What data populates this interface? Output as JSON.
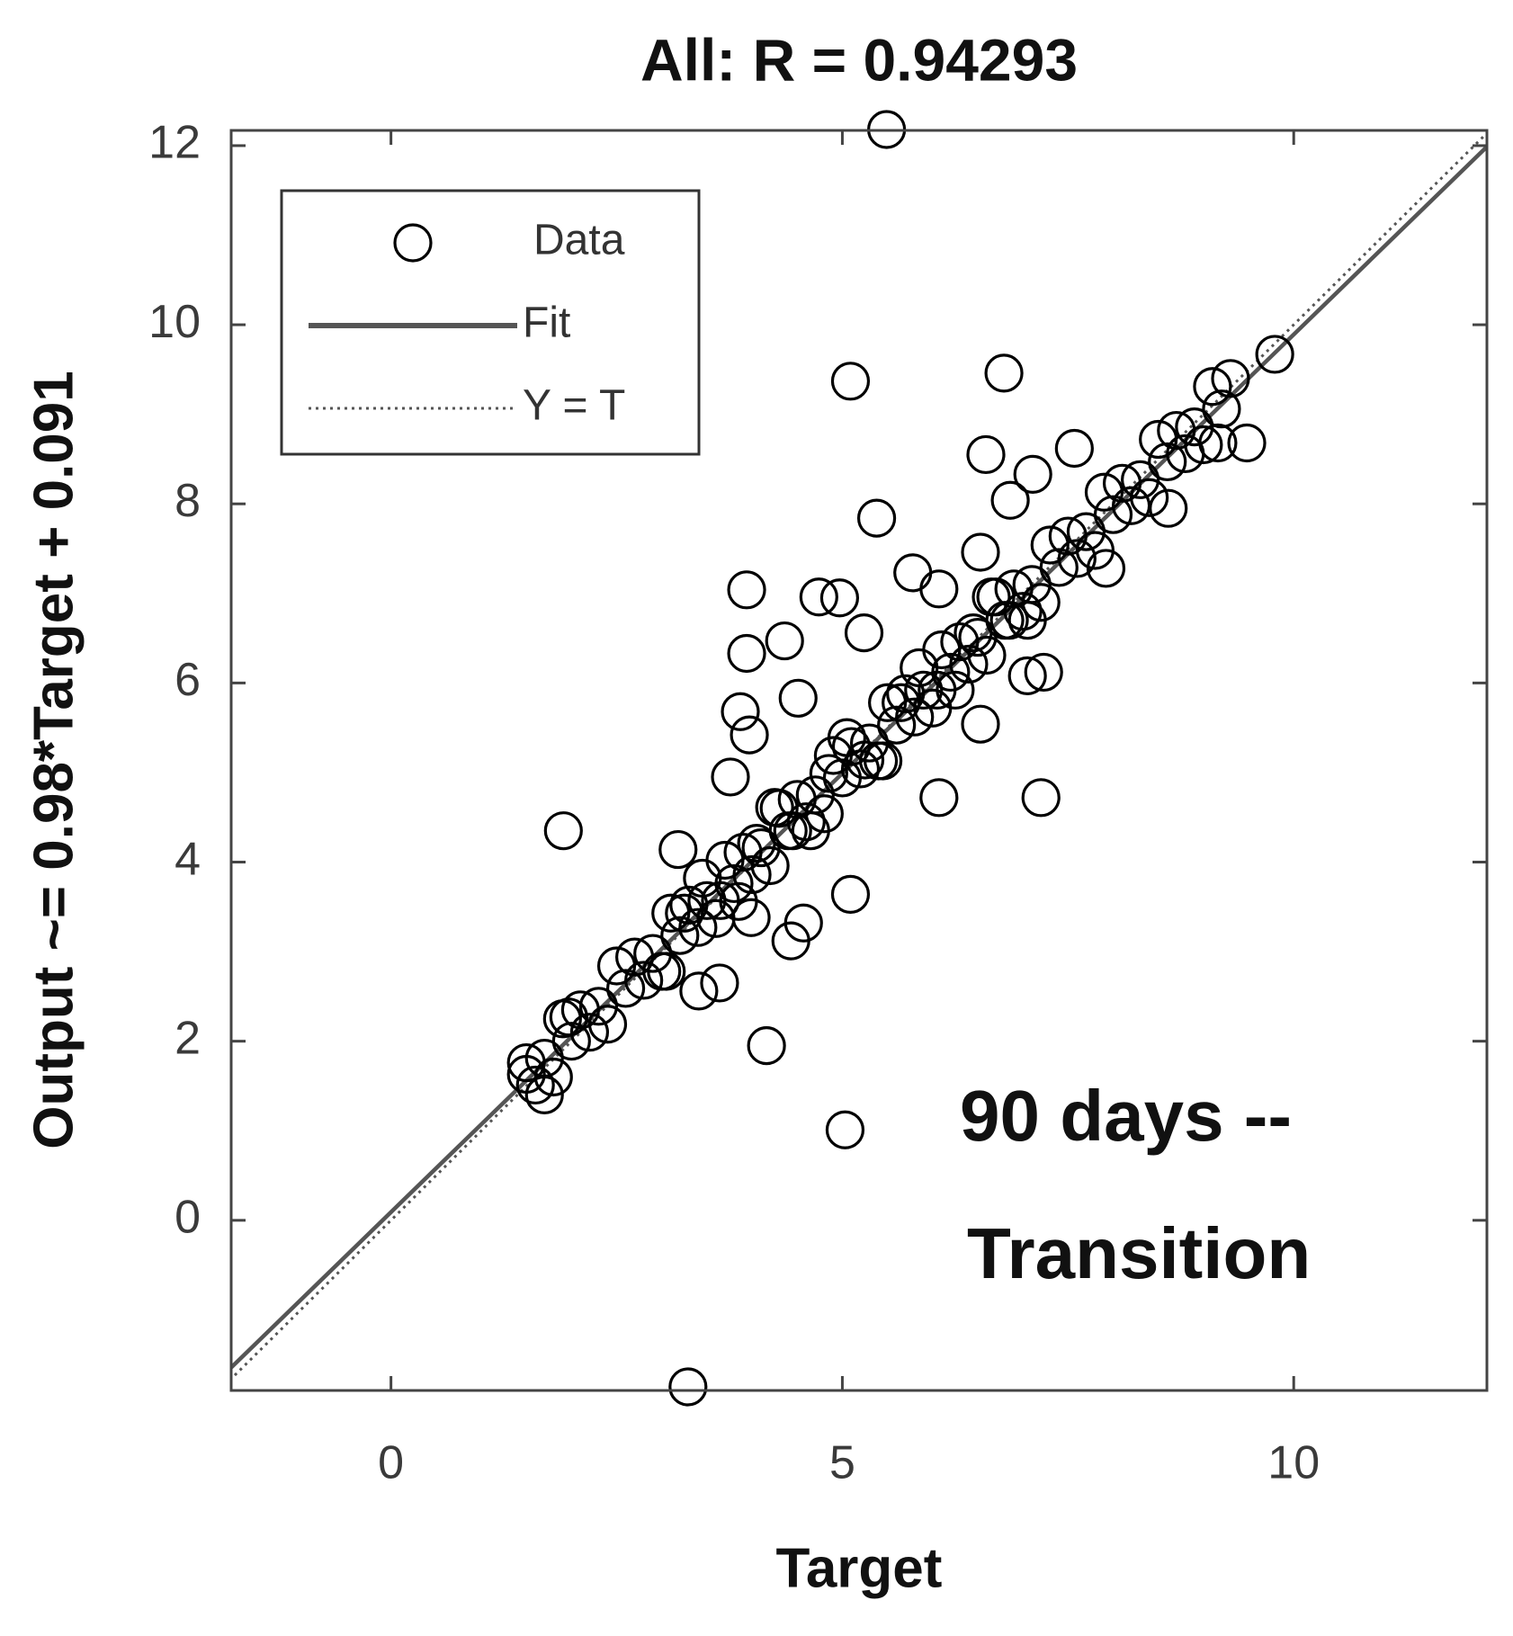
{
  "chart_data": {
    "type": "scatter",
    "title": "All: R = 0.94293",
    "x_label": "Target",
    "y_label": "Output ~= 0.98*Target + 0.091",
    "annotation": [
      "90 days --",
      "Transition"
    ],
    "xlim": [
      -1.77,
      12.14
    ],
    "ylim": [
      -1.9,
      12.17
    ],
    "xticks": [
      0,
      5,
      10
    ],
    "yticks": [
      0,
      2,
      4,
      6,
      8,
      10,
      12
    ],
    "grid": false,
    "legend": "upper left",
    "fit": {
      "name": "Fit",
      "slope": 0.98,
      "intercept": 0.091,
      "color": "#555555"
    },
    "reference": {
      "name": "Y = T",
      "color": "#555555"
    },
    "series": [
      {
        "name": "Data",
        "color": "#000000",
        "x": [
          5.49,
          3.29,
          1.91,
          5.03,
          4.16,
          7.2,
          5.09,
          6.79,
          5.38,
          3.94,
          3.94,
          4.36,
          3.87,
          6.59,
          7.11,
          7.57,
          6.86,
          5.78,
          4.74,
          4.97,
          5.24,
          6.07,
          6.53,
          4.51,
          3.97,
          3.18,
          5.09,
          4.57,
          4.43,
          3.64,
          3.41,
          9.79,
          9.48,
          9.16,
          8.61,
          7.92,
          7.05,
          7.23,
          6.53,
          6.07,
          1.7,
          1.5,
          1.97,
          3.76,
          3.99,
          1.5,
          1.6,
          1.7,
          1.8,
          1.9,
          2.0,
          2.1,
          2.2,
          2.3,
          2.4,
          2.5,
          2.6,
          2.7,
          2.8,
          2.9,
          3.0,
          3.1,
          3.2,
          3.3,
          3.4,
          3.5,
          3.6,
          3.7,
          3.8,
          3.9,
          4.0,
          4.1,
          4.2,
          4.3,
          4.4,
          4.5,
          4.6,
          4.7,
          4.8,
          4.9,
          5.0,
          5.1,
          5.2,
          5.3,
          5.4,
          5.5,
          5.6,
          5.7,
          5.8,
          5.9,
          6.0,
          6.1,
          6.2,
          6.3,
          6.4,
          6.5,
          6.6,
          6.7,
          6.8,
          6.9,
          7.0,
          7.1,
          7.2,
          7.3,
          7.4,
          7.5,
          7.6,
          7.7,
          7.8,
          7.9,
          8.0,
          8.1,
          8.2,
          8.3,
          8.4,
          8.5,
          8.6,
          8.7,
          8.8,
          8.9,
          9.0,
          9.1,
          9.2,
          9.3,
          3.05,
          3.25,
          3.45,
          3.65,
          3.85,
          4.05,
          4.25,
          4.45,
          4.65,
          4.85,
          5.05,
          5.25,
          5.45,
          5.65,
          5.85,
          6.05,
          6.25,
          6.45,
          6.65,
          6.85,
          7.05
        ],
        "values": [
          12.18,
          -1.86,
          4.35,
          1.01,
          1.95,
          4.72,
          9.37,
          9.46,
          7.84,
          7.04,
          6.33,
          6.47,
          5.68,
          8.55,
          8.33,
          8.62,
          8.04,
          7.23,
          6.96,
          6.95,
          6.56,
          7.05,
          7.46,
          5.83,
          5.42,
          4.14,
          3.64,
          3.32,
          3.12,
          2.65,
          2.56,
          9.67,
          8.68,
          8.68,
          7.95,
          7.28,
          6.08,
          6.12,
          5.54,
          4.72,
          1.4,
          1.63,
          2.27,
          4.95,
          3.38,
          1.76,
          1.51,
          1.81,
          1.6,
          2.25,
          2.0,
          2.35,
          2.1,
          2.39,
          2.19,
          2.84,
          2.59,
          2.94,
          2.68,
          2.98,
          2.78,
          3.43,
          3.18,
          3.52,
          3.27,
          3.57,
          3.37,
          4.02,
          3.76,
          4.11,
          3.86,
          4.16,
          3.96,
          4.6,
          4.35,
          4.7,
          4.45,
          4.75,
          4.54,
          5.19,
          4.94,
          5.29,
          5.04,
          5.33,
          5.13,
          5.78,
          5.53,
          5.88,
          5.62,
          5.92,
          5.72,
          6.37,
          6.12,
          6.46,
          6.21,
          6.51,
          6.31,
          6.96,
          6.7,
          7.05,
          6.8,
          7.1,
          6.9,
          7.54,
          7.29,
          7.64,
          7.39,
          7.69,
          7.48,
          8.13,
          7.88,
          8.23,
          7.98,
          8.27,
          8.07,
          8.72,
          8.47,
          8.82,
          8.56,
          8.86,
          8.66,
          9.31,
          9.06,
          9.4,
          2.78,
          3.43,
          3.82,
          3.57,
          3.56,
          4.21,
          4.61,
          4.35,
          4.35,
          4.99,
          5.39,
          5.14,
          5.13,
          5.78,
          6.17,
          5.92,
          5.92,
          6.56,
          6.96,
          6.7,
          6.7
        ]
      }
    ]
  }
}
